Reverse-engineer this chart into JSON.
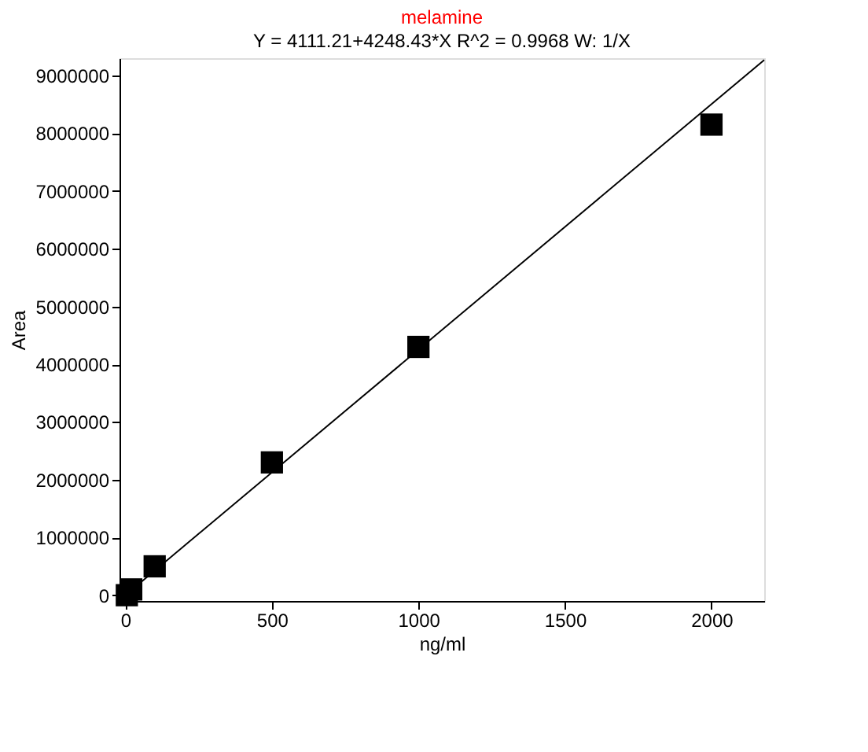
{
  "chart_data": {
    "type": "scatter",
    "title": "melamine",
    "subtitle": "Y = 4111.21+4248.43*X   R^2 = 0.9968   W: 1/X",
    "xlabel": "ng/ml",
    "ylabel": "Area",
    "series": [
      {
        "color": "#000000",
        "marker": "square",
        "x": [
          5,
          20,
          100,
          500,
          1000,
          2000
        ],
        "values": [
          0,
          100000,
          500000,
          2300000,
          4300000,
          8150000
        ]
      },
      {
        "type": "line",
        "color": "#000000",
        "x": [
          0,
          2180
        ],
        "values": [
          0,
          9270000
        ]
      }
    ],
    "xlim": [
      -20,
      2180
    ],
    "xticks": [
      0,
      500,
      1000,
      1500,
      2000
    ],
    "ylim": [
      -100000,
      9300000
    ],
    "yticks": [
      0,
      1000000,
      2000000,
      3000000,
      4000000,
      5000000,
      6000000,
      7000000,
      8000000,
      9000000
    ],
    "grid": false
  }
}
